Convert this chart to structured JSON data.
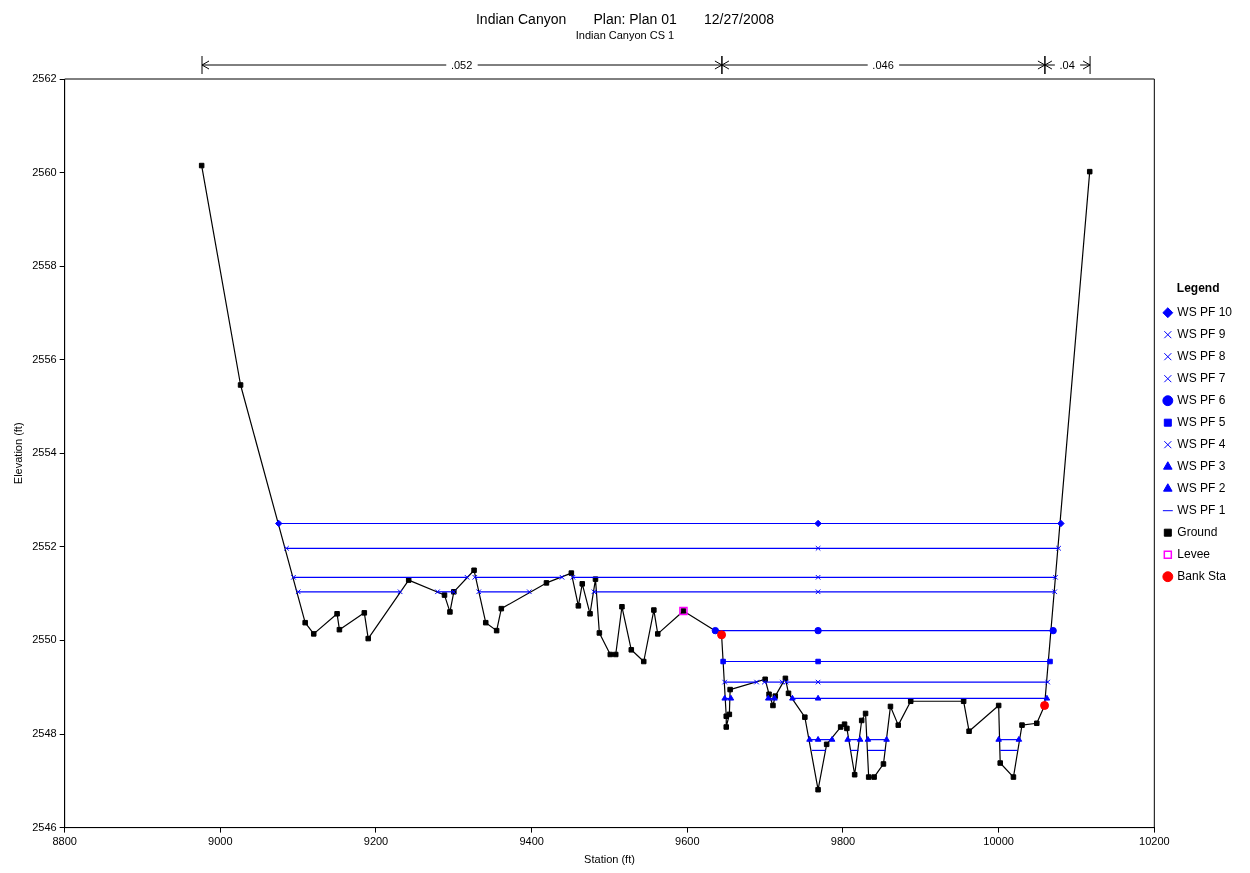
{
  "chart_data": {
    "type": "line",
    "title": "Indian Canyon       Plan: Plan 01       12/27/2008",
    "subtitle": "Indian Canyon CS 1",
    "xlabel": "Station (ft)",
    "ylabel": "Elevation (ft)",
    "legend_title": "Legend",
    "legend": "right",
    "grid": false,
    "xlim": [
      8800,
      10200
    ],
    "xticks": [
      8800,
      9000,
      9200,
      9400,
      9600,
      9800,
      10000,
      10200
    ],
    "ylim": [
      2546,
      2562
    ],
    "yticks": [
      2546,
      2548,
      2550,
      2552,
      2554,
      2556,
      2558,
      2560,
      2562
    ],
    "annotations": [
      ".052",
      ".046",
      ".04"
    ],
    "series": [
      {
        "name": "WS PF 10",
        "type": "line",
        "color": "#0000ff",
        "marker": "diamond",
        "x": [
          9075,
          9768,
          10080
        ],
        "values": [
          2552.5,
          2552.5,
          2552.5
        ]
      },
      {
        "name": "WS PF 9",
        "type": "line",
        "color": "#0000ff",
        "marker": "cross",
        "x": [
          9085,
          9768,
          10077
        ],
        "values": [
          2551.97,
          2551.97,
          2551.97
        ]
      },
      {
        "name": "WS PF 8",
        "type": "line",
        "color": "#0000ff",
        "marker": "cross",
        "x": [
          9094,
          9317
        ],
        "values": [
          2551.35,
          2551.35
        ]
      },
      {
        "type": "line",
        "color": "#0000ff",
        "marker": "cross",
        "x": [
          9327,
          9439
        ],
        "values": [
          2551.35,
          2551.35
        ]
      },
      {
        "type": "line",
        "color": "#0000ff",
        "marker": "cross",
        "x": [
          9453,
          9768,
          10073
        ],
        "values": [
          2551.35,
          2551.35,
          2551.35
        ]
      },
      {
        "name": "WS PF 7",
        "type": "line",
        "color": "#0000ff",
        "marker": "cross",
        "x": [
          9100,
          9231
        ],
        "values": [
          2551.04,
          2551.04
        ]
      },
      {
        "type": "line",
        "color": "#0000ff",
        "marker": "cross",
        "x": [
          9279,
          9300
        ],
        "values": [
          2551.04,
          2551.04
        ]
      },
      {
        "type": "line",
        "color": "#0000ff",
        "marker": "cross",
        "x": [
          9332,
          9397
        ],
        "values": [
          2551.04,
          2551.04
        ]
      },
      {
        "type": "line",
        "color": "#0000ff",
        "marker": "cross",
        "x": [
          9480,
          9768,
          10072
        ],
        "values": [
          2551.04,
          2551.04,
          2551.04
        ]
      },
      {
        "name": "WS PF 6",
        "type": "line",
        "color": "#0000ff",
        "marker": "circle",
        "x": [
          9636,
          9768,
          10070
        ],
        "values": [
          2550.21,
          2550.21,
          2550.21
        ]
      },
      {
        "name": "WS PF 5",
        "type": "line",
        "color": "#0000ff",
        "marker": "square",
        "x": [
          9646,
          9768,
          10066
        ],
        "values": [
          2549.55,
          2549.55,
          2549.55
        ]
      },
      {
        "name": "WS PF 4",
        "type": "line",
        "color": "#0000ff",
        "marker": "cross",
        "x": [
          9648,
          9689
        ],
        "values": [
          2549.11,
          2549.11
        ]
      },
      {
        "type": "line",
        "color": "#0000ff",
        "marker": "cross",
        "x": [
          9699,
          9722
        ],
        "values": [
          2549.11,
          2549.11
        ]
      },
      {
        "type": "line",
        "color": "#0000ff",
        "marker": "cross",
        "x": [
          9727,
          9768,
          10063
        ],
        "values": [
          2549.11,
          2549.11,
          2549.11
        ]
      },
      {
        "name": "WS PF 3",
        "type": "line",
        "color": "#0000ff",
        "marker": "triangle",
        "x": [
          9648,
          9656
        ],
        "values": [
          2548.76,
          2548.76
        ]
      },
      {
        "type": "line",
        "color": "#0000ff",
        "marker": "triangle",
        "x": [
          9704,
          9712
        ],
        "values": [
          2548.76,
          2548.76
        ]
      },
      {
        "type": "line",
        "color": "#0000ff",
        "marker": "triangle",
        "x": [
          9735,
          9768,
          10062
        ],
        "values": [
          2548.76,
          2548.76,
          2548.76
        ]
      },
      {
        "name": "WS PF 2",
        "type": "line",
        "color": "#0000ff",
        "marker": "triangle",
        "x": [
          9757,
          9768,
          9786
        ],
        "values": [
          2547.88,
          2547.88,
          2547.88
        ]
      },
      {
        "type": "line",
        "color": "#0000ff",
        "marker": "triangle",
        "x": [
          9806,
          9822
        ],
        "values": [
          2547.88,
          2547.88
        ]
      },
      {
        "type": "line",
        "color": "#0000ff",
        "marker": "triangle",
        "x": [
          9832,
          9856
        ],
        "values": [
          2547.88,
          2547.88
        ]
      },
      {
        "type": "line",
        "color": "#0000ff",
        "marker": "triangle",
        "x": [
          10000,
          10026
        ],
        "values": [
          2547.88,
          2547.88
        ]
      },
      {
        "name": "WS PF 1",
        "type": "line",
        "color": "#0000ff",
        "marker": "none",
        "x": [
          9760,
          9778
        ],
        "values": [
          2547.65,
          2547.65
        ]
      },
      {
        "type": "line",
        "color": "#0000ff",
        "marker": "none",
        "x": [
          9809,
          9820
        ],
        "values": [
          2547.65,
          2547.65
        ]
      },
      {
        "type": "line",
        "color": "#0000ff",
        "marker": "none",
        "x": [
          9832,
          9855
        ],
        "values": [
          2547.65,
          2547.65
        ]
      },
      {
        "type": "line",
        "color": "#0000ff",
        "marker": "none",
        "x": [
          10002,
          10024
        ],
        "values": [
          2547.65,
          2547.65
        ]
      },
      {
        "name": "Ground",
        "type": "line",
        "color": "#000000",
        "marker": "square",
        "x": [
          8976,
          9026,
          9109,
          9120,
          9150,
          9153,
          9185,
          9190,
          9242,
          9288,
          9295,
          9300,
          9326,
          9341,
          9355,
          9361,
          9419,
          9451,
          9460,
          9465,
          9475,
          9482,
          9487,
          9501,
          9508,
          9516,
          9528,
          9544,
          9557,
          9562,
          9595,
          9644,
          9650,
          9650,
          9654,
          9655,
          9700,
          9705,
          9710,
          9713,
          9726,
          9730,
          9751,
          9768,
          9779,
          9797,
          9802,
          9805,
          9815,
          9824,
          9829,
          9833,
          9840,
          9852,
          9861,
          9871,
          9887,
          9955,
          9962,
          10000,
          10002,
          10019,
          10030,
          10049,
          10059,
          10117
        ],
        "values": [
          2560.15,
          2555.46,
          2550.38,
          2550.14,
          2550.57,
          2550.23,
          2550.59,
          2550.04,
          2551.29,
          2550.97,
          2550.61,
          2551.04,
          2551.5,
          2550.38,
          2550.21,
          2550.68,
          2551.23,
          2551.44,
          2550.74,
          2551.21,
          2550.57,
          2551.31,
          2550.16,
          2549.7,
          2549.7,
          2550.72,
          2549.8,
          2549.55,
          2550.65,
          2550.14,
          2550.63,
          2550.12,
          2548.38,
          2548.15,
          2548.42,
          2548.95,
          2549.17,
          2548.85,
          2548.61,
          2548.81,
          2549.19,
          2548.87,
          2548.36,
          2546.81,
          2547.78,
          2548.15,
          2548.21,
          2548.12,
          2547.13,
          2548.29,
          2548.44,
          2547.08,
          2547.08,
          2547.36,
          2548.59,
          2548.19,
          2548.7,
          2548.7,
          2548.06,
          2548.61,
          2547.38,
          2547.08,
          2548.19,
          2548.23,
          2548.61,
          2560.02
        ]
      },
      {
        "name": "Levee",
        "type": "scatter",
        "color": "#ff00ff",
        "marker": "square",
        "x": [
          9595
        ],
        "values": [
          2550.63
        ]
      },
      {
        "name": "Bank Sta",
        "type": "scatter",
        "color": "#ff0000",
        "marker": "circle",
        "x": [
          9644,
          10059
        ],
        "values": [
          2550.12,
          2548.61
        ]
      }
    ]
  }
}
